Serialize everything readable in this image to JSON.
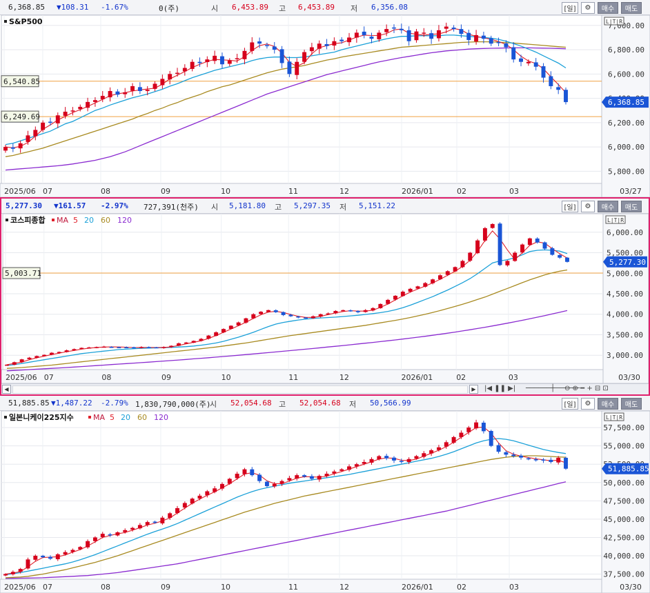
{
  "panes": [
    {
      "id": "sp500",
      "quote": {
        "price": "6,368.85",
        "change": "▼108.31",
        "pct": "-1.67%",
        "volume": "0(주)",
        "open_label": "시",
        "open": "6,453.89",
        "high_label": "고",
        "high": "6,453.89",
        "low_label": "저",
        "low": "6,356.08"
      },
      "legend": {
        "name": "S&P500",
        "ma": []
      },
      "yaxis": {
        "min": 5700,
        "max": 7050,
        "ticks": [
          "7,000.00",
          "6,800.00",
          "6,600.00",
          "6,400.00",
          "6,200.00",
          "6,000.00",
          "5,800.00"
        ],
        "tick_values": [
          7000,
          6800,
          6600,
          6400,
          6200,
          6000,
          5800
        ]
      },
      "hlines": [
        {
          "label": "6,540.85",
          "value": 6540.85
        },
        {
          "label": "6,249.69",
          "value": 6249.69
        }
      ],
      "last_label": "6,368.85",
      "last_value": 6368.85,
      "xaxis": [
        "2025/06",
        "07",
        "08",
        "09",
        "10",
        "11",
        "12",
        "2026/01",
        "02",
        "03",
        "03/27"
      ],
      "series": {
        "close": [
          6000,
          5985,
          6030,
          6095,
          6140,
          6200,
          6205,
          6260,
          6290,
          6300,
          6330,
          6370,
          6385,
          6420,
          6460,
          6430,
          6450,
          6500,
          6460,
          6470,
          6520,
          6560,
          6600,
          6610,
          6650,
          6700,
          6690,
          6720,
          6750,
          6680,
          6710,
          6730,
          6790,
          6860,
          6850,
          6830,
          6800,
          6690,
          6600,
          6700,
          6780,
          6820,
          6850,
          6830,
          6870,
          6870,
          6900,
          6940,
          6920,
          6890,
          6940,
          6970,
          6980,
          6960,
          6870,
          6950,
          6940,
          6890,
          6960,
          6990,
          6970,
          6930,
          6880,
          6920,
          6890,
          6850,
          6860,
          6820,
          6720,
          6700,
          6700,
          6660,
          6570,
          6500,
          6470,
          6368.85
        ],
        "ma20": [
          6020,
          6030,
          6050,
          6070,
          6090,
          6110,
          6130,
          6160,
          6190,
          6210,
          6240,
          6270,
          6300,
          6320,
          6345,
          6365,
          6385,
          6405,
          6420,
          6435,
          6455,
          6475,
          6500,
          6520,
          6545,
          6570,
          6590,
          6610,
          6630,
          6645,
          6660,
          6675,
          6690,
          6710,
          6725,
          6735,
          6740,
          6740,
          6735,
          6735,
          6740,
          6750,
          6760,
          6770,
          6780,
          6800,
          6815,
          6830,
          6845,
          6860,
          6875,
          6890,
          6900,
          6910,
          6910,
          6915,
          6915,
          6915,
          6915,
          6920,
          6920,
          6915,
          6910,
          6905,
          6900,
          6895,
          6885,
          6870,
          6850,
          6830,
          6805,
          6780,
          6750,
          6720,
          6690,
          6650
        ],
        "ma60": [
          5920,
          5930,
          5945,
          5960,
          5975,
          5990,
          6010,
          6030,
          6050,
          6070,
          6090,
          6110,
          6130,
          6150,
          6170,
          6190,
          6210,
          6230,
          6255,
          6275,
          6300,
          6320,
          6345,
          6365,
          6390,
          6410,
          6430,
          6455,
          6475,
          6495,
          6510,
          6530,
          6550,
          6570,
          6590,
          6610,
          6625,
          6640,
          6650,
          6660,
          6670,
          6685,
          6700,
          6715,
          6725,
          6740,
          6750,
          6760,
          6770,
          6780,
          6790,
          6800,
          6810,
          6820,
          6825,
          6830,
          6835,
          6840,
          6845,
          6850,
          6855,
          6860,
          6862,
          6865,
          6865,
          6865,
          6862,
          6858,
          6855,
          6850,
          6845,
          6840,
          6835,
          6830,
          6825,
          6820
        ],
        "ma120": [
          5810,
          5815,
          5820,
          5825,
          5830,
          5835,
          5840,
          5845,
          5852,
          5860,
          5870,
          5880,
          5890,
          5905,
          5920,
          5940,
          5960,
          5985,
          6010,
          6035,
          6060,
          6085,
          6110,
          6135,
          6160,
          6185,
          6210,
          6235,
          6260,
          6285,
          6310,
          6335,
          6360,
          6385,
          6410,
          6435,
          6455,
          6475,
          6495,
          6515,
          6535,
          6555,
          6575,
          6595,
          6610,
          6625,
          6640,
          6655,
          6670,
          6685,
          6700,
          6712,
          6724,
          6735,
          6745,
          6755,
          6765,
          6775,
          6782,
          6790,
          6795,
          6800,
          6805,
          6808,
          6810,
          6812,
          6813,
          6814,
          6815,
          6815,
          6815,
          6814,
          6813,
          6812,
          6810,
          6808
        ]
      }
    },
    {
      "id": "kospi",
      "quote": {
        "price": "5,277.30",
        "change": "▼161.57",
        "pct": "-2.97%",
        "volume": "727,391(천주)",
        "open_label": "시",
        "open": "5,181.80",
        "high_label": "고",
        "high": "5,297.35",
        "low_label": "저",
        "low": "5,151.22"
      },
      "legend": {
        "name": "코스피종합",
        "ma_label": "MA",
        "ma": [
          "5",
          "20",
          "60",
          "120"
        ]
      },
      "yaxis": {
        "min": 2650,
        "max": 6350,
        "ticks": [
          "6,000.00",
          "5,500.00",
          "5,000.00",
          "4,500.00",
          "4,000.00",
          "3,500.00",
          "3,000.00"
        ],
        "tick_values": [
          6000,
          5500,
          5000,
          4500,
          4000,
          3500,
          3000
        ]
      },
      "hlines": [
        {
          "label": "5,003.71",
          "value": 5003.71
        }
      ],
      "last_label": "5,277.30",
      "last_value": 5277.3,
      "xaxis": [
        "2025/06",
        "07",
        "08",
        "09",
        "10",
        "11",
        "12",
        "2026/01",
        "02",
        "03",
        "03/30"
      ],
      "series": {
        "close": [
          2770,
          2830,
          2900,
          2940,
          2980,
          3010,
          3060,
          3080,
          3120,
          3150,
          3180,
          3190,
          3200,
          3210,
          3200,
          3195,
          3190,
          3180,
          3200,
          3190,
          3180,
          3200,
          3230,
          3290,
          3310,
          3350,
          3400,
          3480,
          3560,
          3640,
          3720,
          3800,
          3900,
          4000,
          4060,
          4100,
          4050,
          3980,
          3950,
          3920,
          3900,
          3950,
          4000,
          4020,
          4080,
          4100,
          4080,
          4050,
          4100,
          4150,
          4250,
          4350,
          4450,
          4550,
          4620,
          4680,
          4760,
          4850,
          4950,
          5050,
          5150,
          5300,
          5500,
          5800,
          6100,
          6200,
          5200,
          5300,
          5500,
          5700,
          5850,
          5750,
          5600,
          5450,
          5380,
          5277.3
        ],
        "ma20": [
          2750,
          2770,
          2800,
          2830,
          2860,
          2890,
          2920,
          2950,
          2980,
          3010,
          3040,
          3060,
          3080,
          3100,
          3120,
          3140,
          3150,
          3160,
          3170,
          3175,
          3180,
          3185,
          3190,
          3200,
          3210,
          3225,
          3245,
          3270,
          3300,
          3340,
          3390,
          3440,
          3500,
          3560,
          3630,
          3700,
          3760,
          3800,
          3830,
          3860,
          3880,
          3900,
          3910,
          3920,
          3930,
          3945,
          3960,
          3975,
          3995,
          4015,
          4040,
          4070,
          4110,
          4160,
          4220,
          4290,
          4360,
          4430,
          4510,
          4590,
          4680,
          4770,
          4870,
          4990,
          5120,
          5250,
          5300,
          5330,
          5380,
          5450,
          5530,
          5560,
          5570,
          5560,
          5540,
          5480
        ],
        "ma60": [
          2680,
          2690,
          2700,
          2715,
          2730,
          2745,
          2760,
          2780,
          2800,
          2820,
          2840,
          2860,
          2880,
          2900,
          2920,
          2940,
          2960,
          2980,
          3000,
          3020,
          3040,
          3060,
          3080,
          3100,
          3120,
          3140,
          3160,
          3180,
          3200,
          3225,
          3250,
          3275,
          3300,
          3330,
          3360,
          3390,
          3420,
          3450,
          3480,
          3505,
          3530,
          3555,
          3580,
          3605,
          3630,
          3655,
          3680,
          3705,
          3730,
          3760,
          3790,
          3820,
          3850,
          3885,
          3920,
          3960,
          4000,
          4045,
          4090,
          4140,
          4190,
          4245,
          4300,
          4360,
          4420,
          4490,
          4560,
          4630,
          4700,
          4770,
          4840,
          4900,
          4960,
          5010,
          5050,
          5080
        ],
        "ma120": [
          2620,
          2630,
          2640,
          2650,
          2660,
          2670,
          2680,
          2690,
          2700,
          2712,
          2724,
          2736,
          2748,
          2760,
          2772,
          2784,
          2796,
          2808,
          2820,
          2832,
          2845,
          2858,
          2871,
          2884,
          2898,
          2912,
          2926,
          2940,
          2955,
          2970,
          2985,
          3000,
          3016,
          3032,
          3048,
          3064,
          3080,
          3097,
          3114,
          3131,
          3148,
          3165,
          3183,
          3201,
          3219,
          3237,
          3256,
          3275,
          3294,
          3313,
          3333,
          3353,
          3374,
          3395,
          3417,
          3440,
          3463,
          3487,
          3512,
          3538,
          3565,
          3593,
          3622,
          3652,
          3683,
          3715,
          3748,
          3782,
          3817,
          3853,
          3890,
          3928,
          3967,
          4007,
          4048,
          4090
        ]
      }
    },
    {
      "id": "nikkei",
      "quote": {
        "price": "51,885.85",
        "change": "▼1,487.22",
        "pct": "-2.79%",
        "volume": "1,830,790,000(주)",
        "open_label": "시",
        "open": "52,054.68",
        "high_label": "고",
        "high": "52,054.68",
        "low_label": "저",
        "low": "50,566.99"
      },
      "legend": {
        "name": "일본니케이225지수",
        "ma_label": "MA",
        "ma": [
          "5",
          "20",
          "60",
          "120"
        ]
      },
      "yaxis": {
        "min": 36800,
        "max": 59200,
        "ticks": [
          "57,500.00",
          "55,000.00",
          "52,500.00",
          "50,000.00",
          "47,500.00",
          "45,000.00",
          "42,500.00",
          "40,000.00",
          "37,500.00"
        ],
        "tick_values": [
          57500,
          55000,
          52500,
          50000,
          47500,
          45000,
          42500,
          40000,
          37500
        ]
      },
      "hlines": [],
      "last_label": "51,885.85",
      "last_value": 51885.85,
      "xaxis": [
        "2025/06",
        "07",
        "08",
        "09",
        "10",
        "11",
        "12",
        "2026/01",
        "02",
        "03",
        "03/30"
      ],
      "series": {
        "close": [
          37500,
          37800,
          38200,
          39500,
          40000,
          39800,
          39600,
          40200,
          40500,
          40800,
          41200,
          42000,
          42500,
          43000,
          42800,
          43200,
          43500,
          43800,
          44200,
          44600,
          44500,
          45200,
          45800,
          46500,
          47200,
          47800,
          48200,
          48800,
          49200,
          49800,
          50500,
          51200,
          51800,
          51000,
          50200,
          49500,
          49800,
          50200,
          50600,
          51000,
          50800,
          50500,
          50900,
          51200,
          51500,
          51800,
          52200,
          52500,
          52800,
          53200,
          53600,
          53300,
          53000,
          52800,
          53200,
          53600,
          54000,
          54400,
          54800,
          55500,
          56200,
          56800,
          57500,
          58200,
          57000,
          55000,
          54200,
          53800,
          53600,
          53400,
          53200,
          53100,
          53000,
          52800,
          53373,
          51885.85
        ],
        "ma20": [
          37400,
          37550,
          37700,
          37900,
          38100,
          38300,
          38500,
          38700,
          38900,
          39150,
          39450,
          39800,
          40150,
          40550,
          40950,
          41350,
          41750,
          42150,
          42550,
          42950,
          43300,
          43650,
          44000,
          44400,
          44850,
          45300,
          45750,
          46200,
          46650,
          47100,
          47550,
          48000,
          48400,
          48750,
          49050,
          49300,
          49500,
          49700,
          49900,
          50050,
          50200,
          50350,
          50500,
          50650,
          50800,
          50950,
          51100,
          51300,
          51500,
          51700,
          51900,
          52100,
          52300,
          52500,
          52700,
          52900,
          53100,
          53300,
          53550,
          53850,
          54200,
          54600,
          55000,
          55400,
          55700,
          55900,
          56000,
          55900,
          55700,
          55400,
          55100,
          54800,
          54500,
          54300,
          54100,
          53950
        ],
        "ma60": [
          37000,
          37050,
          37100,
          37200,
          37350,
          37500,
          37700,
          37900,
          38100,
          38350,
          38600,
          38850,
          39100,
          39400,
          39700,
          40000,
          40350,
          40700,
          41050,
          41400,
          41750,
          42100,
          42450,
          42800,
          43150,
          43500,
          43850,
          44200,
          44550,
          44900,
          45250,
          45600,
          45950,
          46250,
          46550,
          46850,
          47150,
          47400,
          47650,
          47900,
          48150,
          48350,
          48550,
          48750,
          48950,
          49150,
          49350,
          49550,
          49750,
          49950,
          50150,
          50350,
          50550,
          50750,
          50950,
          51150,
          51350,
          51550,
          51750,
          51950,
          52150,
          52350,
          52550,
          52750,
          52950,
          53150,
          53300,
          53450,
          53550,
          53600,
          53650,
          53650,
          53600,
          53550,
          53500,
          53450
        ],
        "ma120": [
          36900,
          36920,
          36940,
          36960,
          36980,
          37000,
          37050,
          37100,
          37150,
          37200,
          37250,
          37300,
          37400,
          37500,
          37600,
          37700,
          37850,
          38000,
          38150,
          38300,
          38450,
          38600,
          38750,
          38900,
          39100,
          39300,
          39500,
          39700,
          39900,
          40100,
          40300,
          40500,
          40700,
          40900,
          41100,
          41300,
          41500,
          41700,
          41900,
          42100,
          42300,
          42500,
          42700,
          42900,
          43100,
          43300,
          43500,
          43700,
          43900,
          44100,
          44300,
          44500,
          44700,
          44900,
          45100,
          45300,
          45500,
          45700,
          45900,
          46100,
          46350,
          46600,
          46850,
          47100,
          47350,
          47600,
          47850,
          48100,
          48350,
          48600,
          48850,
          49100,
          49350,
          49600,
          49850,
          50100
        ]
      }
    }
  ],
  "controls": {
    "period": "[일]",
    "gear": "⚙",
    "buy": "매수",
    "sell": "매도"
  },
  "scroll": {
    "left": "◀",
    "right": "▶",
    "ctrls": "⊖ ⊕ ━ + ⊟ ⊡"
  },
  "colors": {
    "up": "#d6001c",
    "down": "#1a55d6",
    "ma5": "#e0202a",
    "ma20": "#1aa0d8",
    "ma60": "#a88a20",
    "ma120": "#8a2ad0",
    "hline": "#f0a040"
  }
}
